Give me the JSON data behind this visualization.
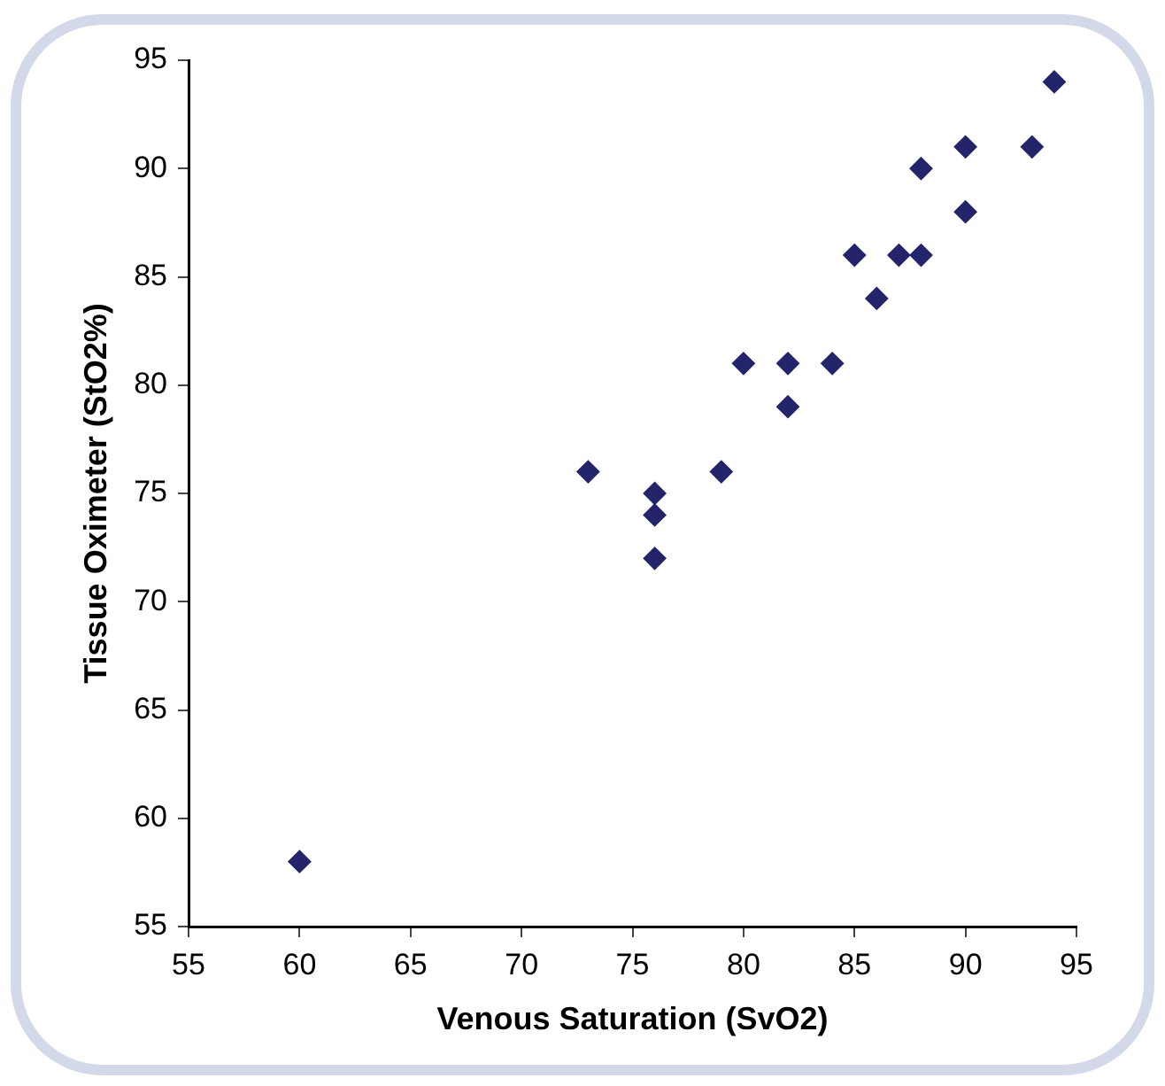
{
  "chart_data": {
    "type": "scatter",
    "xlabel": "Venous Saturation (SvO2)",
    "ylabel": "Tissue Oximeter (StO2%)",
    "x": [
      60,
      73,
      76,
      76,
      76,
      79,
      80,
      82,
      82,
      84,
      85,
      86,
      87,
      88,
      88,
      90,
      90,
      93,
      94
    ],
    "values": [
      58,
      76,
      75,
      74,
      72,
      76,
      81,
      81,
      79,
      81,
      86,
      84,
      86,
      86,
      90,
      91,
      88,
      91,
      94
    ],
    "color": "#24246b",
    "marker": "diamond",
    "grid": false,
    "xlim": [
      55,
      95
    ],
    "xticks": [
      55,
      60,
      65,
      70,
      75,
      80,
      85,
      90,
      95
    ],
    "ylim": [
      55,
      95
    ],
    "yticks": [
      55,
      60,
      65,
      70,
      75,
      80,
      85,
      90,
      95
    ]
  }
}
